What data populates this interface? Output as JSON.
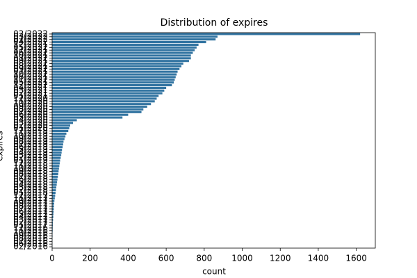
{
  "chart_data": {
    "type": "barh",
    "title": "Distribution of expires",
    "xlabel": "count",
    "ylabel": "expires",
    "categories": [
      "02/2022",
      "03/2022",
      "01/2022",
      "04/2022",
      "12/2021",
      "05/2022",
      "11/2021",
      "06/2022",
      "10/2021",
      "07/2022",
      "09/2021",
      "08/2022",
      "08/2021",
      "09/2022",
      "07/2021",
      "10/2022",
      "06/2021",
      "11/2022",
      "05/2021",
      "12/2022",
      "04/2021",
      "03/2021",
      "02/2021",
      "01/2021",
      "12/2020",
      "11/2020",
      "10/2020",
      "09/2020",
      "08/2020",
      "07/2020",
      "06/2020",
      "05/2020",
      "04/2020",
      "03/2020",
      "02/2020",
      "01/2020",
      "12/2019",
      "11/2019",
      "10/2019",
      "09/2019",
      "08/2019",
      "07/2019",
      "06/2019",
      "05/2019",
      "04/2019",
      "03/2019",
      "02/2019",
      "01/2019",
      "12/2018",
      "11/2018",
      "10/2018",
      "09/2018",
      "08/2018",
      "07/2018",
      "06/2018",
      "05/2018",
      "04/2018",
      "03/2018",
      "02/2018",
      "01/2018",
      "12/2017",
      "11/2017",
      "10/2017",
      "09/2017",
      "08/2017",
      "07/2017",
      "06/2017",
      "05/2017",
      "04/2017",
      "03/2017",
      "02/2017",
      "01/2017",
      "12/2016",
      "11/2016",
      "10/2016",
      "09/2016",
      "08/2016",
      "07/2016",
      "06/2016",
      "02/2016"
    ],
    "values": [
      1620,
      870,
      860,
      810,
      770,
      760,
      750,
      740,
      730,
      730,
      720,
      690,
      680,
      670,
      660,
      655,
      650,
      645,
      640,
      630,
      600,
      590,
      580,
      560,
      550,
      540,
      520,
      500,
      480,
      470,
      400,
      370,
      130,
      110,
      95,
      90,
      85,
      75,
      70,
      65,
      60,
      58,
      55,
      52,
      50,
      48,
      45,
      42,
      40,
      38,
      36,
      34,
      32,
      30,
      28,
      26,
      24,
      22,
      20,
      18,
      16,
      14,
      12,
      11,
      10,
      9,
      8,
      7,
      6,
      5,
      4,
      4,
      3,
      3,
      2,
      2,
      1,
      1,
      1,
      1
    ],
    "color": "#3274a1",
    "xlim": [
      0,
      1700
    ],
    "xticks": [
      0,
      200,
      400,
      600,
      800,
      1000,
      1200,
      1400,
      1600
    ]
  }
}
